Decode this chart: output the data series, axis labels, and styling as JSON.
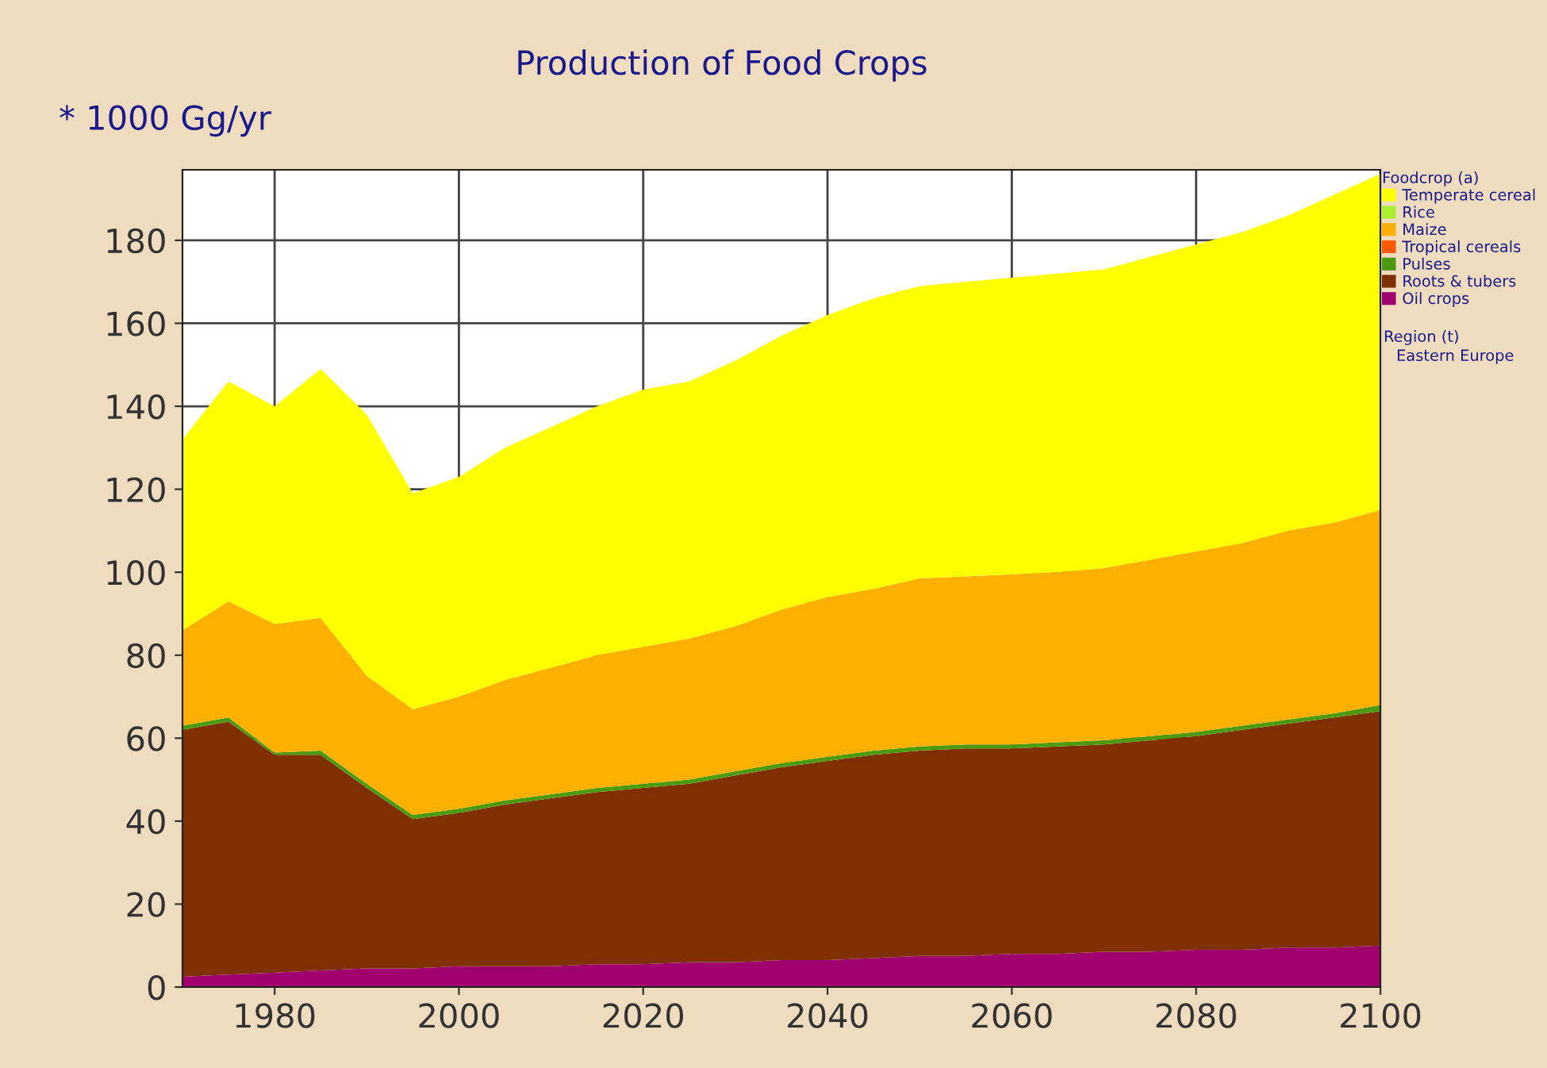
{
  "chart_data": {
    "type": "area",
    "stacked": true,
    "title": "Production of Food Crops",
    "ylabel": "* 1000 Gg/yr",
    "legend_title": "Foodcrop (a)",
    "annotations": [
      "Region (t)",
      "Eastern Europe"
    ],
    "x": [
      1970,
      1975,
      1980,
      1985,
      1990,
      1995,
      2000,
      2005,
      2010,
      2015,
      2020,
      2025,
      2030,
      2035,
      2040,
      2045,
      2050,
      2055,
      2060,
      2065,
      2070,
      2075,
      2080,
      2085,
      2090,
      2095,
      2100
    ],
    "xlim": [
      1970,
      2100
    ],
    "xticks": [
      1980,
      2000,
      2020,
      2040,
      2060,
      2080,
      2100
    ],
    "ylim": [
      0,
      197
    ],
    "yticks": [
      0,
      20,
      40,
      60,
      80,
      100,
      120,
      140,
      160,
      180
    ],
    "grid": true,
    "legend": "right",
    "series": [
      {
        "name": "Oil crops",
        "color": "#a0006e",
        "values": [
          2.5,
          3,
          3.5,
          4,
          4.5,
          4.5,
          5,
          5,
          5,
          5.5,
          5.5,
          6,
          6,
          6.5,
          6.5,
          7,
          7.5,
          7.5,
          8,
          8,
          8.5,
          8.5,
          9,
          9,
          9.5,
          9.5,
          10
        ]
      },
      {
        "name": "Roots & tubers",
        "color": "#803000",
        "values": [
          59.5,
          61,
          52.5,
          52,
          43.5,
          36,
          37,
          39,
          40.5,
          41.5,
          42.5,
          43,
          45,
          46.5,
          48,
          49,
          49.5,
          50,
          49.5,
          50,
          50,
          51,
          51.5,
          53,
          54,
          55.5,
          56.5
        ]
      },
      {
        "name": "Pulses",
        "color": "#4c9a10",
        "values": [
          1,
          1,
          0.5,
          1,
          1,
          1,
          1,
          1,
          1,
          1,
          1,
          1,
          1,
          1,
          1,
          1,
          1,
          1,
          1,
          1,
          1,
          1,
          1,
          1,
          1,
          1,
          1.5
        ]
      },
      {
        "name": "Tropical cereals",
        "color": "#ff5a00",
        "values": [
          null,
          null,
          null,
          null,
          null,
          null,
          null,
          null,
          null,
          null,
          null,
          null,
          null,
          null,
          null,
          null,
          null,
          null,
          null,
          null,
          null,
          null,
          null,
          null,
          null,
          null,
          null
        ]
      },
      {
        "name": "Maize",
        "color": "#ffb000",
        "values": [
          23,
          28,
          31,
          32,
          26,
          25.5,
          27,
          29,
          30.5,
          32,
          33,
          34,
          35,
          37,
          38.5,
          39,
          40.5,
          40.5,
          41,
          41,
          41.5,
          42.5,
          43.5,
          44,
          45.5,
          46,
          47
        ]
      },
      {
        "name": "Rice",
        "color": "#a8f030",
        "values": [
          null,
          null,
          null,
          null,
          null,
          null,
          null,
          null,
          null,
          null,
          null,
          null,
          null,
          null,
          null,
          null,
          null,
          null,
          null,
          null,
          null,
          null,
          null,
          null,
          null,
          null,
          null
        ]
      },
      {
        "name": "Temperate cereal",
        "color": "#ffff00",
        "values": [
          46,
          53,
          52.5,
          60,
          63,
          52,
          53,
          56,
          58,
          60,
          62,
          62,
          64,
          66,
          68,
          70,
          70.5,
          71,
          71.5,
          72,
          72,
          73,
          74,
          75,
          76,
          79,
          81
        ]
      }
    ]
  }
}
